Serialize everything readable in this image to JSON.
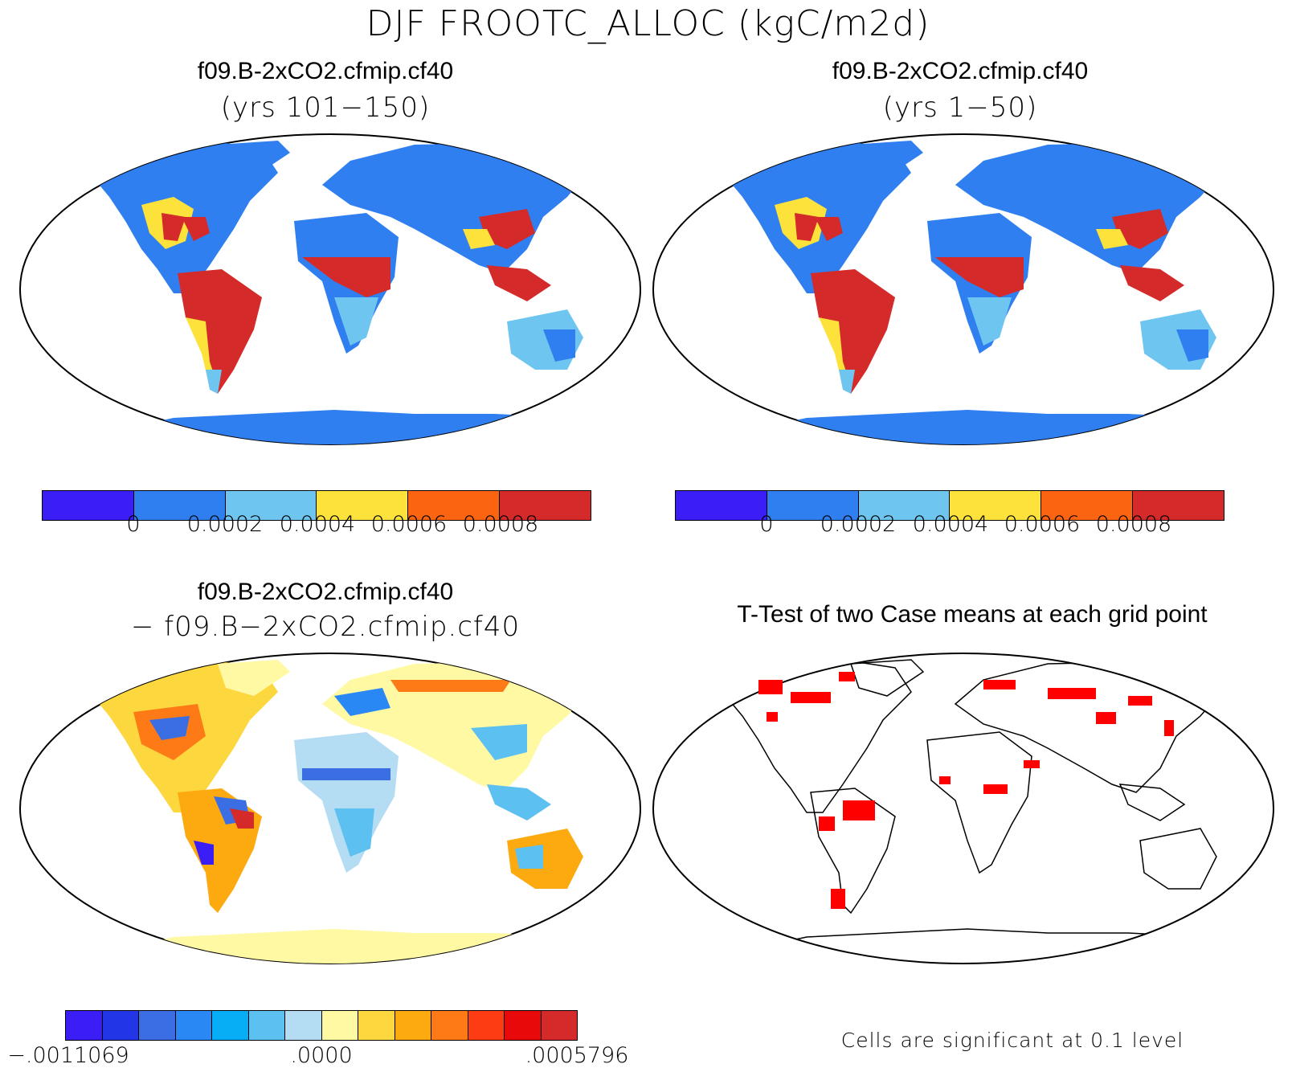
{
  "title": "DJF FROOTC_ALLOC (kgC/m2d)",
  "panels": [
    {
      "title": "f09.B-2xCO2.cfmip.cf40",
      "subtitle": "(yrs 101−150)"
    },
    {
      "title": "f09.B-2xCO2.cfmip.cf40",
      "subtitle": "(yrs 1−50)"
    },
    {
      "title": "f09.B-2xCO2.cfmip.cf40",
      "subtitle": "− f09.B−2xCO2.cfmip.cf40"
    },
    {
      "title": "T-Test of two Case means at each grid point",
      "subtitle": ""
    }
  ],
  "colorbar_top": {
    "colors": [
      "#3b1ef5",
      "#2f7ff0",
      "#6ec6f0",
      "#fde23c",
      "#fb6410",
      "#d42a2a"
    ],
    "labels": [
      "0",
      "0.0002",
      "0.0004",
      "0.0006",
      "0.0008"
    ]
  },
  "colorbar_diff": {
    "colors": [
      "#3b1ef5",
      "#2236e8",
      "#3a6ee2",
      "#2a88f5",
      "#08aef5",
      "#5cc0f0",
      "#b4dcf2",
      "#fff9a4",
      "#fdd73e",
      "#fdaa10",
      "#fd7a16",
      "#fd3c14",
      "#e80a0a",
      "#d42a2a"
    ],
    "labels": [
      "−.0011069",
      ".0000",
      ".0005796"
    ]
  },
  "significance_note": "Cells are significant at 0.1 level",
  "colors": {
    "land_cold": "#2f7ff0",
    "land_warm": "#d42a2a",
    "land_mid": "#fde23c",
    "diff_bg": "#fff9a4",
    "sig": "#ff0000"
  }
}
